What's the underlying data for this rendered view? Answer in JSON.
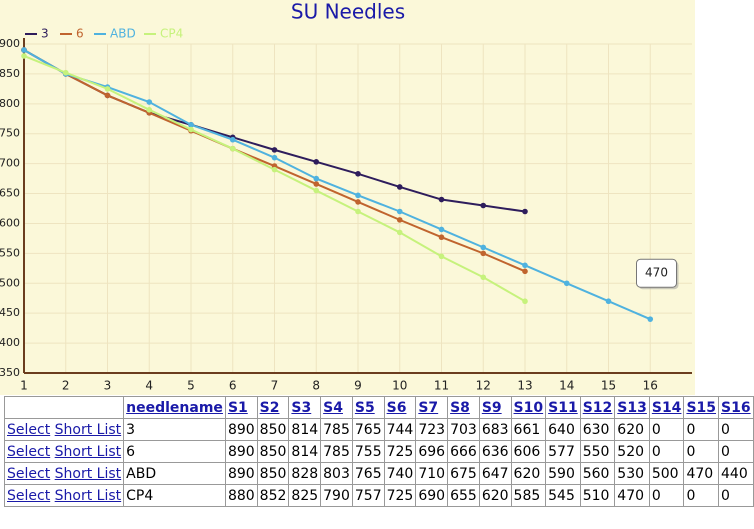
{
  "chart_data": {
    "type": "line",
    "title": "SU Needles",
    "x": [
      1,
      2,
      3,
      4,
      5,
      6,
      7,
      8,
      9,
      10,
      11,
      12,
      13,
      14,
      15,
      16
    ],
    "series": [
      {
        "name": "3",
        "color": "#2e1d5c",
        "values": [
          890,
          850,
          814,
          785,
          765,
          744,
          723,
          703,
          683,
          661,
          640,
          630,
          620,
          null,
          null,
          null
        ]
      },
      {
        "name": "6",
        "color": "#c0642e",
        "values": [
          890,
          850,
          814,
          785,
          755,
          725,
          696,
          666,
          636,
          606,
          577,
          550,
          520,
          null,
          null,
          null
        ]
      },
      {
        "name": "ABD",
        "color": "#4fb2df",
        "values": [
          890,
          850,
          828,
          803,
          765,
          740,
          710,
          675,
          647,
          620,
          590,
          560,
          530,
          500,
          470,
          440
        ]
      },
      {
        "name": "CP4",
        "color": "#c6f27c",
        "values": [
          880,
          852,
          825,
          790,
          757,
          725,
          690,
          655,
          620,
          585,
          545,
          510,
          470,
          null,
          null,
          null
        ]
      }
    ],
    "xlim": [
      1,
      17
    ],
    "xticks": [
      1,
      2,
      3,
      4,
      5,
      6,
      7,
      8,
      9,
      10,
      11,
      12,
      13,
      14,
      15,
      16
    ],
    "ylim": [
      350,
      900
    ],
    "yticks": [
      350,
      400,
      450,
      500,
      550,
      600,
      650,
      700,
      750,
      800,
      850,
      900
    ],
    "grid": true,
    "legend": "top-left"
  },
  "table": {
    "actions": [
      "Select",
      "Short List"
    ],
    "columns": [
      "needlename",
      "S1",
      "S2",
      "S3",
      "S4",
      "S5",
      "S6",
      "S7",
      "S8",
      "S9",
      "S10",
      "S11",
      "S12",
      "S13",
      "S14",
      "S15",
      "S16"
    ],
    "rows": [
      {
        "name": "3",
        "values": [
          890,
          850,
          814,
          785,
          765,
          744,
          723,
          703,
          683,
          661,
          640,
          630,
          620,
          0,
          0,
          0
        ]
      },
      {
        "name": "6",
        "values": [
          890,
          850,
          814,
          785,
          755,
          725,
          696,
          666,
          636,
          606,
          577,
          550,
          520,
          0,
          0,
          0
        ]
      },
      {
        "name": "ABD",
        "values": [
          890,
          850,
          828,
          803,
          765,
          740,
          710,
          675,
          647,
          620,
          590,
          560,
          530,
          500,
          470,
          440
        ]
      },
      {
        "name": "CP4",
        "values": [
          880,
          852,
          825,
          790,
          757,
          725,
          690,
          655,
          620,
          585,
          545,
          510,
          470,
          0,
          0,
          0
        ]
      }
    ]
  }
}
